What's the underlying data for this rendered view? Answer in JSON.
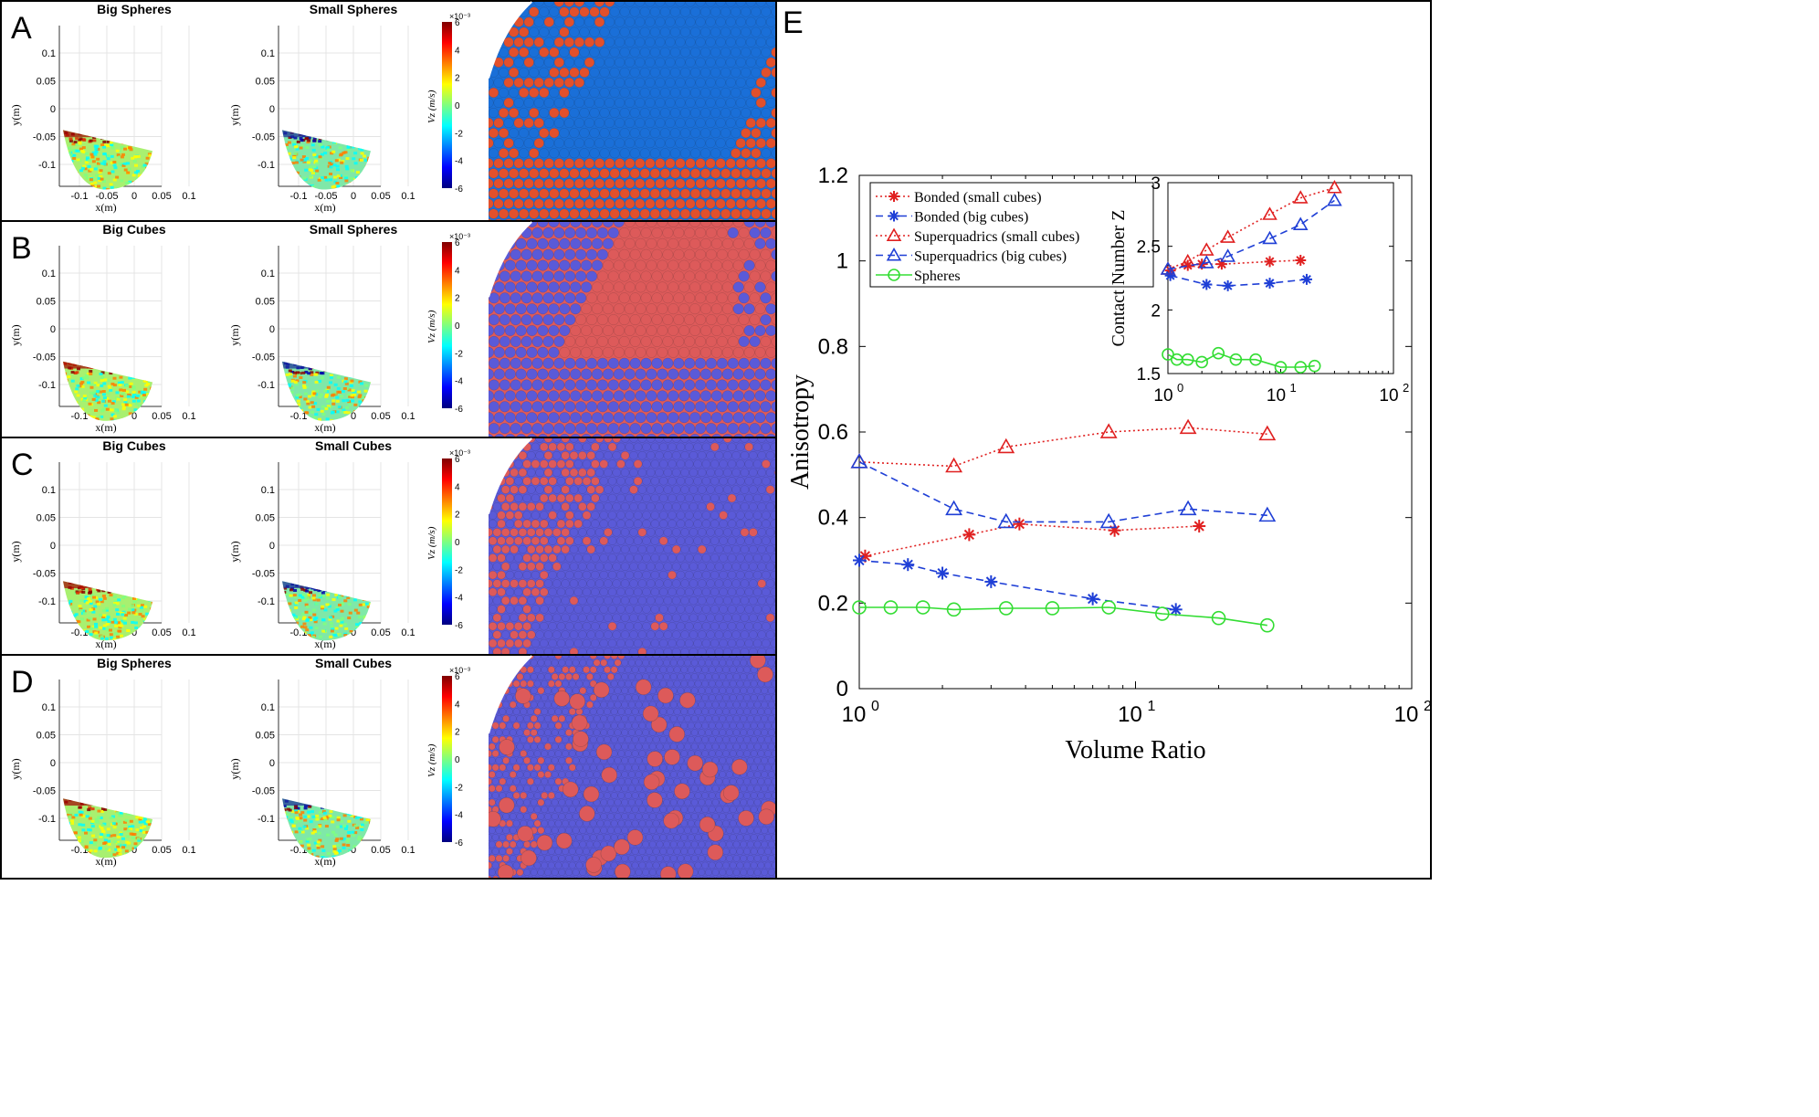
{
  "rows": [
    {
      "letter": "A",
      "left_title": "Big Spheres",
      "right_title": "Small Spheres",
      "render": "spheres-vs-spheres"
    },
    {
      "letter": "B",
      "left_title": "Big Cubes",
      "right_title": "Small Spheres",
      "render": "cubes-vs-spheres"
    },
    {
      "letter": "C",
      "left_title": "Big Cubes",
      "right_title": "Small Cubes",
      "render": "cubes-vs-cubes"
    },
    {
      "letter": "D",
      "left_title": "Big Spheres",
      "right_title": "Small Cubes",
      "render": "spheres-vs-cubes"
    }
  ],
  "mini_axes": {
    "x_ticks": [
      "-0.1",
      "-0.05",
      "0",
      "0.05",
      "0.1"
    ],
    "y_ticks": [
      "0.1",
      "0.05",
      "0",
      "-0.05",
      "-0.1"
    ],
    "xlabel": "x(m)",
    "ylabel": "y(m)"
  },
  "colorbar": {
    "exponent_label": "×10⁻³",
    "ticks": [
      "6",
      "4",
      "2",
      "0",
      "-2",
      "-4",
      "-6"
    ],
    "label": "Vz (m/s)"
  },
  "panel_e_letter": "E",
  "colors": {
    "red": "#e02020",
    "blue": "#1f3fd6",
    "green": "#33dd33",
    "sphere_blue": "#1a6fd8",
    "sphere_red": "#e2502c",
    "cube_blue": "#5a5ad8",
    "cube_red": "#dd5a5a"
  },
  "chart_data": {
    "type": "line",
    "xlabel": "Volume Ratio",
    "ylabel": "Anisotropy",
    "xscale": "log",
    "xlim": [
      1,
      100
    ],
    "ylim": [
      0,
      1.2
    ],
    "x_tick_labels": [
      "10^0",
      "10^1",
      "10^2"
    ],
    "y_tick_labels": [
      "0",
      "0.2",
      "0.4",
      "0.6",
      "0.8",
      "1",
      "1.2"
    ],
    "legend_position": "top-left",
    "series": [
      {
        "name": "Bonded (small cubes)",
        "color": "#e02020",
        "style": "dotted",
        "marker": "star",
        "x": [
          1.05,
          2.5,
          3.8,
          8.4,
          17
        ],
        "y": [
          0.31,
          0.36,
          0.385,
          0.37,
          0.38
        ]
      },
      {
        "name": "Bonded (big cubes)",
        "color": "#1f3fd6",
        "style": "dashed",
        "marker": "star",
        "x": [
          1.0,
          1.5,
          2.0,
          3.0,
          7.0,
          14
        ],
        "y": [
          0.3,
          0.29,
          0.27,
          0.25,
          0.21,
          0.185
        ]
      },
      {
        "name": "Superquadrics (small cubes)",
        "color": "#e02020",
        "style": "dotted",
        "marker": "triangle",
        "x": [
          1.0,
          2.2,
          3.4,
          8.0,
          15.5,
          30
        ],
        "y": [
          0.53,
          0.52,
          0.565,
          0.6,
          0.61,
          0.595
        ]
      },
      {
        "name": "Superquadrics (big cubes)",
        "color": "#1f3fd6",
        "style": "dashed",
        "marker": "triangle",
        "x": [
          1.0,
          2.2,
          3.4,
          8.0,
          15.5,
          30
        ],
        "y": [
          0.53,
          0.42,
          0.39,
          0.39,
          0.42,
          0.405
        ]
      },
      {
        "name": "Spheres",
        "color": "#33dd33",
        "style": "solid",
        "marker": "circle",
        "x": [
          1.0,
          1.3,
          1.7,
          2.2,
          3.4,
          5.0,
          8.0,
          12.5,
          20,
          30
        ],
        "y": [
          0.19,
          0.19,
          0.19,
          0.185,
          0.188,
          0.188,
          0.19,
          0.175,
          0.165,
          0.148
        ]
      }
    ],
    "inset": {
      "type": "line",
      "ylabel": "Contact Number Z",
      "xscale": "log",
      "xlim": [
        1,
        100
      ],
      "ylim": [
        1.5,
        3
      ],
      "x_tick_labels": [
        "10^0",
        "10^1",
        "10^2"
      ],
      "y_tick_labels": [
        "1.5",
        "2",
        "2.5",
        "3"
      ],
      "series": [
        {
          "name": "Bonded (small cubes)",
          "color": "#e02020",
          "style": "dotted",
          "marker": "star",
          "x": [
            1.05,
            1.5,
            2.0,
            3.0,
            8.0,
            15
          ],
          "y": [
            2.31,
            2.35,
            2.36,
            2.36,
            2.38,
            2.39
          ]
        },
        {
          "name": "Bonded (big cubes)",
          "color": "#1f3fd6",
          "style": "dashed",
          "marker": "star",
          "x": [
            1.05,
            2.2,
            3.4,
            8.0,
            17
          ],
          "y": [
            2.27,
            2.2,
            2.19,
            2.21,
            2.24
          ]
        },
        {
          "name": "Superquadrics (small cubes)",
          "color": "#e02020",
          "style": "dotted",
          "marker": "triangle",
          "x": [
            1.0,
            1.5,
            2.2,
            3.4,
            8.0,
            15,
            30
          ],
          "y": [
            2.32,
            2.38,
            2.47,
            2.57,
            2.75,
            2.88,
            2.96
          ]
        },
        {
          "name": "Superquadrics (big cubes)",
          "color": "#1f3fd6",
          "style": "dashed",
          "marker": "triangle",
          "x": [
            1.0,
            2.2,
            3.4,
            8.0,
            15,
            30
          ],
          "y": [
            2.32,
            2.37,
            2.42,
            2.56,
            2.67,
            2.86
          ]
        },
        {
          "name": "Spheres",
          "color": "#33dd33",
          "style": "solid",
          "marker": "circle",
          "x": [
            1.0,
            1.2,
            1.5,
            2.0,
            2.8,
            4.0,
            6.0,
            10,
            15,
            20
          ],
          "y": [
            1.65,
            1.61,
            1.61,
            1.59,
            1.66,
            1.61,
            1.61,
            1.55,
            1.55,
            1.56
          ]
        }
      ]
    }
  }
}
